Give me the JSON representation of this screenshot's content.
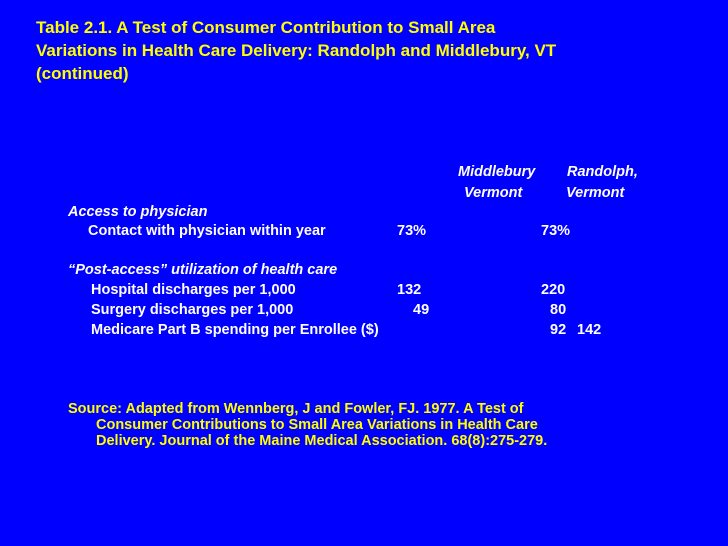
{
  "title": {
    "line1": "Table 2.1. A Test of Consumer Contribution to Small Area",
    "line2": "Variations in Health Care Delivery: Randolph and Middlebury, VT",
    "line3": "(continued)"
  },
  "table": {
    "col1_header": {
      "line1": "Middlebury",
      "line2": "Vermont"
    },
    "col2_header": {
      "line1": "Randolph,",
      "line2": "Vermont"
    },
    "section1": {
      "heading": "Access to physician",
      "rows": [
        {
          "label": "Contact with physician within year",
          "middlebury": "73%",
          "randolph": "73%"
        }
      ]
    },
    "section2": {
      "heading": "“Post-access” utilization of health care",
      "rows": [
        {
          "label": "Hospital discharges per 1,000",
          "middlebury": "132",
          "randolph": "220"
        },
        {
          "label": "Surgery discharges per 1,000",
          "middlebury": "49",
          "randolph": "80"
        },
        {
          "label": "Medicare Part B spending per Enrollee ($)",
          "middlebury": "92",
          "randolph": "142"
        }
      ]
    }
  },
  "source": {
    "line1": "Source: Adapted from Wennberg, J and Fowler, FJ. 1977. A Test of",
    "line2": "Consumer Contributions to Small Area Variations in Health Care",
    "line3": "Delivery. Journal of the Maine Medical Association. 68(8):275-279."
  },
  "colors": {
    "background": "#0000ff",
    "title_text": "#ffff00",
    "body_text": "#ffffff",
    "source_text": "#ffff00"
  }
}
